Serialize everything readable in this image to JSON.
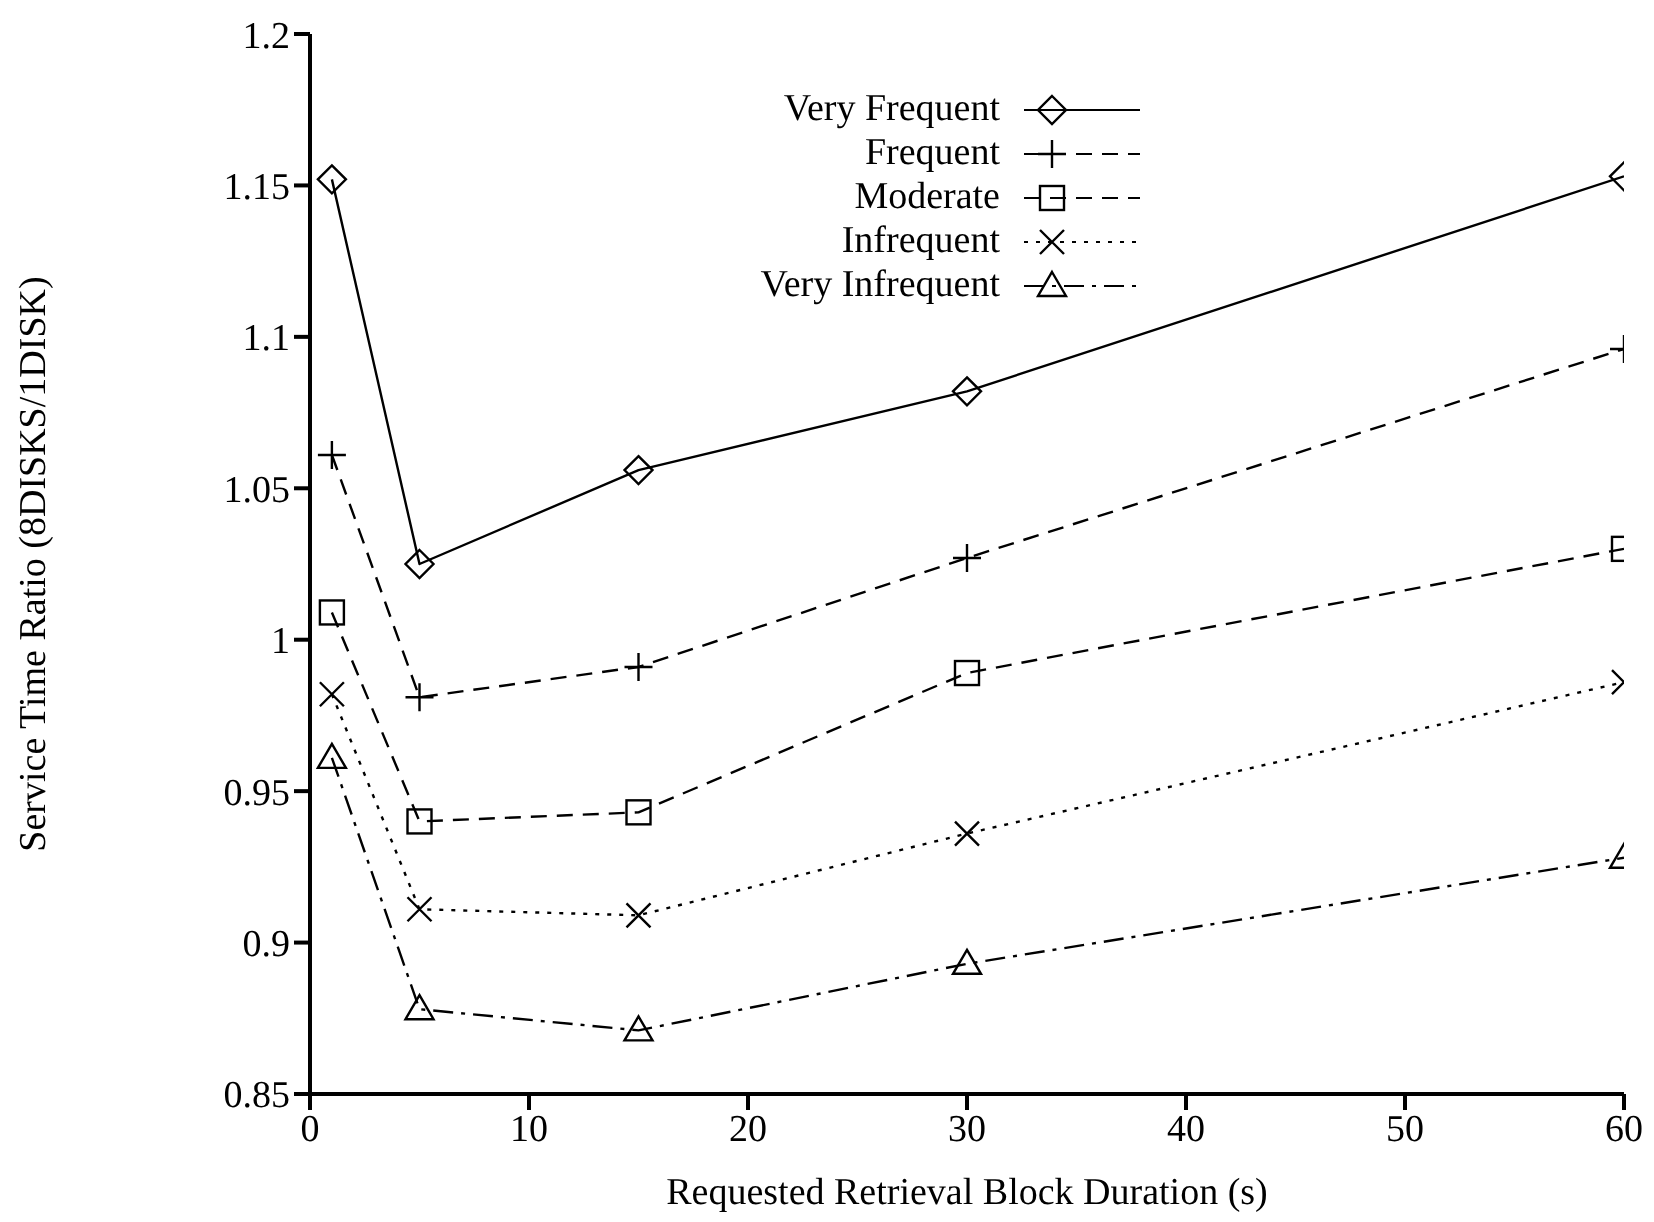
{
  "chart_data": {
    "type": "line",
    "xlabel": "Requested Retrieval Block Duration (s)",
    "ylabel": "Service Time Ratio (8DISKS/1DISK)",
    "x": [
      1,
      5,
      15,
      30,
      60
    ],
    "series": [
      {
        "name": "Very Frequent",
        "color": "#000000",
        "marker": "diamond",
        "line_style": "solid",
        "values": [
          1.152,
          1.025,
          1.056,
          1.082,
          1.153
        ]
      },
      {
        "name": "Frequent",
        "color": "#000000",
        "marker": "plus",
        "line_style": "dashed",
        "values": [
          1.061,
          0.981,
          0.991,
          1.027,
          1.096
        ]
      },
      {
        "name": "Moderate",
        "color": "#000000",
        "marker": "square",
        "line_style": "dashed",
        "values": [
          1.009,
          0.94,
          0.943,
          0.989,
          1.03
        ]
      },
      {
        "name": "Infrequent",
        "color": "#000000",
        "marker": "cross",
        "line_style": "dotted",
        "values": [
          0.982,
          0.911,
          0.909,
          0.936,
          0.986
        ]
      },
      {
        "name": "Very Infrequent",
        "color": "#000000",
        "marker": "triangle",
        "line_style": "dashdot",
        "values": [
          0.961,
          0.878,
          0.871,
          0.893,
          0.928
        ]
      }
    ],
    "xlim": [
      0,
      60
    ],
    "xticks": [
      0,
      10,
      20,
      30,
      40,
      50,
      60
    ],
    "ylim": [
      0.85,
      1.2
    ],
    "yticks": [
      0.85,
      0.9,
      0.95,
      1,
      1.05,
      1.1,
      1.15,
      1.2
    ],
    "grid": false,
    "legend": "top right"
  }
}
